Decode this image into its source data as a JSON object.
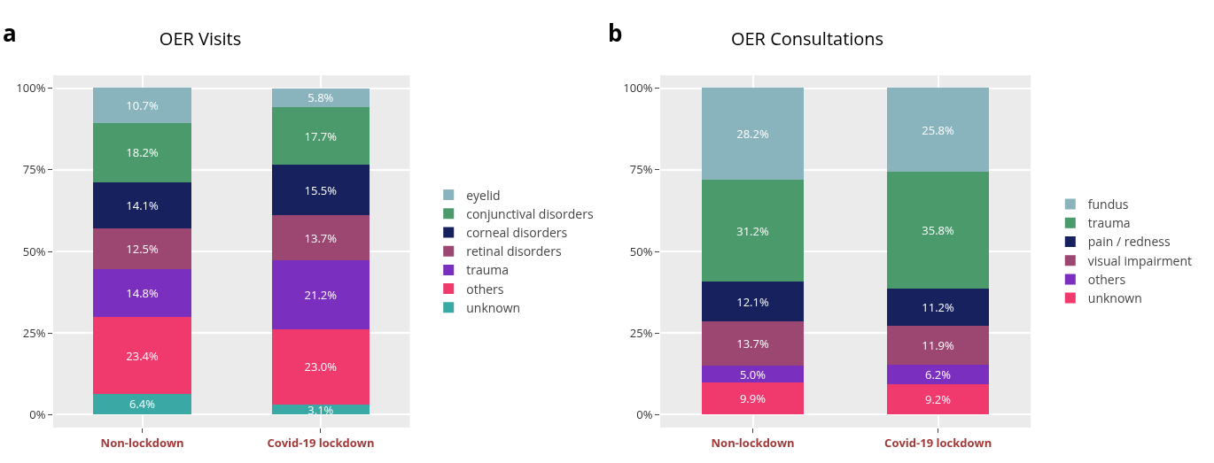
{
  "chart_data": [
    {
      "type": "bar",
      "title": "OER Visits",
      "annotations": [
        "a"
      ],
      "categories": [
        "Non-lockdown",
        "Covid-19 lockdown"
      ],
      "stacked": true,
      "grid": true,
      "legend": "right",
      "ylim": [
        -4,
        104
      ],
      "yticks": [
        {
          "value": 0,
          "label": "0%"
        },
        {
          "value": 25,
          "label": "25%"
        },
        {
          "value": 50,
          "label": "50%"
        },
        {
          "value": 75,
          "label": "75%"
        },
        {
          "value": 100,
          "label": "100%"
        }
      ],
      "series": [
        {
          "name": "unknown",
          "color": "#3aa8a4",
          "values": [
            6.4,
            3.1
          ],
          "value_labels": [
            "6.4%",
            "3.1%"
          ]
        },
        {
          "name": "others",
          "color": "#f03a6e",
          "values": [
            23.4,
            23.0
          ],
          "value_labels": [
            "23.4%",
            "23.0%"
          ]
        },
        {
          "name": "trauma",
          "color": "#7b2fbf",
          "values": [
            14.8,
            21.2
          ],
          "value_labels": [
            "14.8%",
            "21.2%"
          ]
        },
        {
          "name": "retinal disorders",
          "color": "#9c4672",
          "values": [
            12.5,
            13.7
          ],
          "value_labels": [
            "12.5%",
            "13.7%"
          ]
        },
        {
          "name": "corneal disorders",
          "color": "#16215e",
          "values": [
            14.1,
            15.5
          ],
          "value_labels": [
            "14.1%",
            "15.5%"
          ]
        },
        {
          "name": "conjunctival disorders",
          "color": "#4b9a6c",
          "values": [
            18.2,
            17.7
          ],
          "value_labels": [
            "18.2%",
            "17.7%"
          ]
        },
        {
          "name": "eyelid",
          "color": "#8ab4bd",
          "values": [
            10.7,
            5.8
          ],
          "value_labels": [
            "10.7%",
            "5.8%"
          ]
        }
      ]
    },
    {
      "type": "bar",
      "title": "OER Consultations",
      "annotations": [
        "b"
      ],
      "categories": [
        "Non-lockdown",
        "Covid-19 lockdown"
      ],
      "stacked": true,
      "grid": true,
      "legend": "right",
      "ylim": [
        -4,
        104
      ],
      "yticks": [
        {
          "value": 0,
          "label": "0%"
        },
        {
          "value": 25,
          "label": "25%"
        },
        {
          "value": 50,
          "label": "50%"
        },
        {
          "value": 75,
          "label": "75%"
        },
        {
          "value": 100,
          "label": "100%"
        }
      ],
      "series": [
        {
          "name": "unknown",
          "color": "#f03a6e",
          "values": [
            9.9,
            9.2
          ],
          "value_labels": [
            "9.9%",
            "9.2%"
          ]
        },
        {
          "name": "others",
          "color": "#7b2fbf",
          "values": [
            5.0,
            6.2
          ],
          "value_labels": [
            "5.0%",
            "6.2%"
          ]
        },
        {
          "name": "visual impairment",
          "color": "#9c4672",
          "values": [
            13.7,
            11.9
          ],
          "value_labels": [
            "13.7%",
            "11.9%"
          ]
        },
        {
          "name": "pain / redness",
          "color": "#16215e",
          "values": [
            12.1,
            11.2
          ],
          "value_labels": [
            "12.1%",
            "11.2%"
          ]
        },
        {
          "name": "trauma",
          "color": "#4b9a6c",
          "values": [
            31.2,
            35.8
          ],
          "value_labels": [
            "31.2%",
            "35.8%"
          ]
        },
        {
          "name": "fundus",
          "color": "#8ab4bd",
          "values": [
            28.2,
            25.8
          ],
          "value_labels": [
            "28.2%",
            "25.8%"
          ]
        }
      ]
    }
  ]
}
